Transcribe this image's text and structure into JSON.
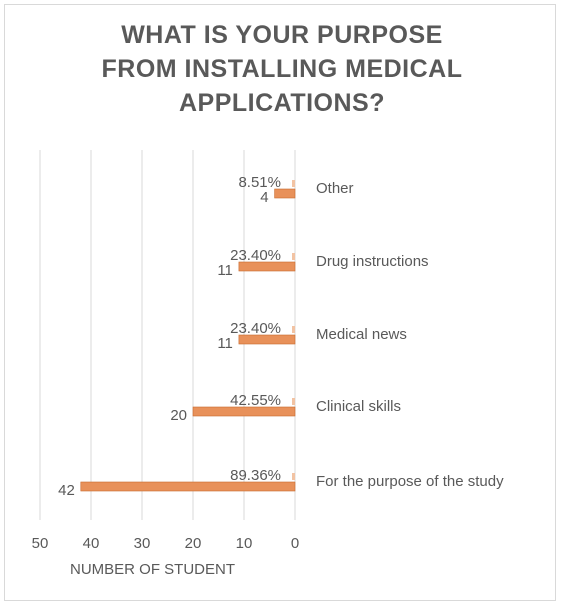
{
  "chart_data": {
    "type": "bar",
    "orientation": "horizontal-reversed",
    "title_lines": [
      "WHAT IS YOUR PURPOSE",
      "FROM INSTALLING MEDICAL",
      "APPLICATIONS?"
    ],
    "xlabel": "NUMBER OF STUDENT",
    "ylabel": "",
    "xlim": [
      0,
      50
    ],
    "xticks": [
      "50",
      "40",
      "30",
      "20",
      "10",
      "0"
    ],
    "categories": [
      "Other",
      "Drug instructions",
      "Medical news",
      "Clinical skills",
      "For the purpose of the study"
    ],
    "series": [
      {
        "values": [
          4,
          11,
          11,
          20,
          42
        ],
        "value_labels": [
          "4",
          "11",
          "11",
          "20",
          "42"
        ]
      },
      {
        "values": [
          8.51,
          23.4,
          23.4,
          42.55,
          89.36
        ],
        "value_labels": [
          "8.51%",
          "23.40%",
          "23.40%",
          "42.55%",
          "89.36%"
        ]
      }
    ],
    "grid": true,
    "legend": "none",
    "colors": {
      "bar": "#e8915a",
      "bar_stroke": "#c96a2e",
      "grid": "#d9d9d9",
      "text": "#595959"
    }
  }
}
